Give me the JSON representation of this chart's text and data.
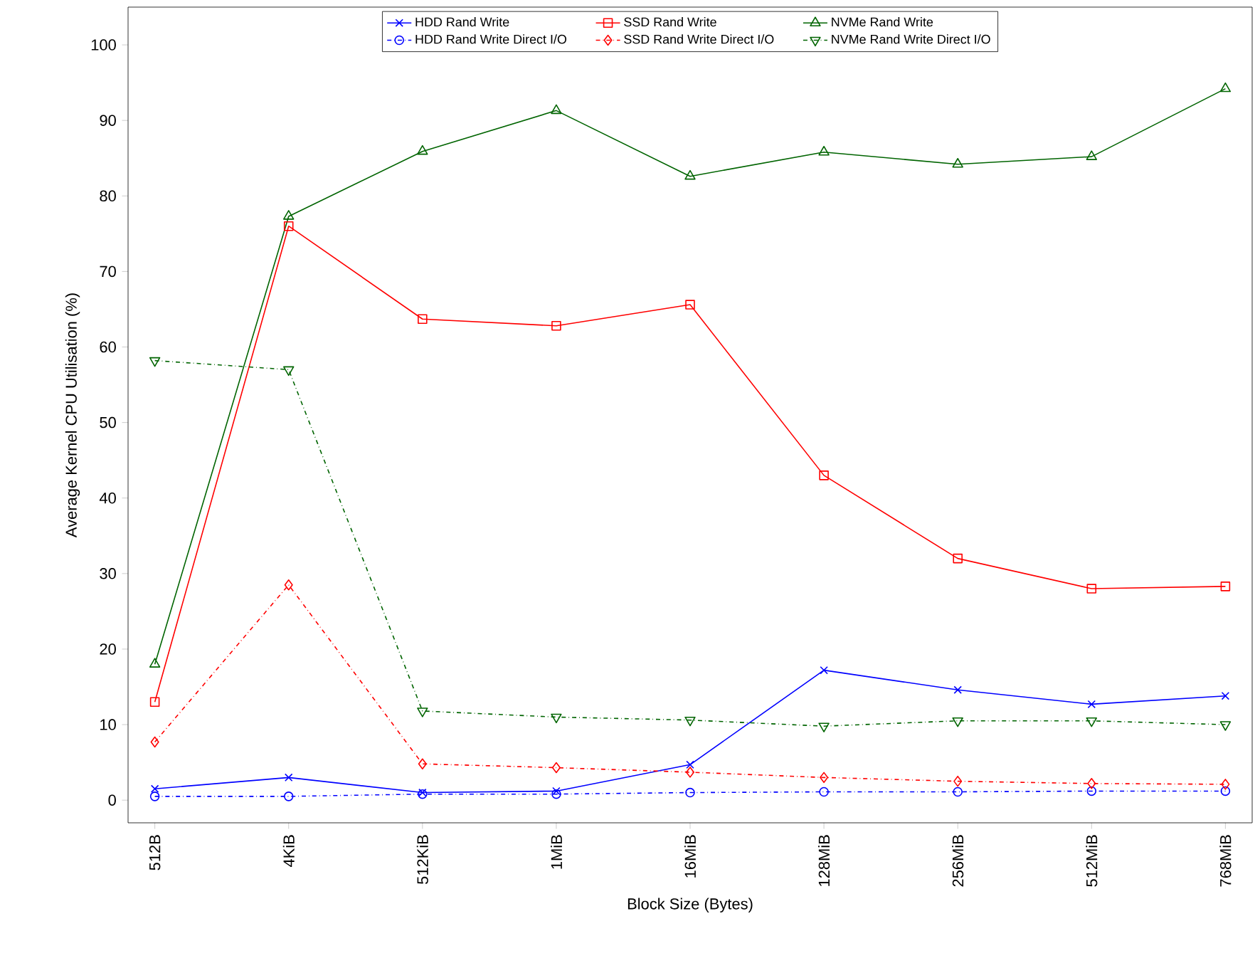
{
  "chart_data": {
    "type": "line",
    "xlabel": "Block Size (Bytes)",
    "ylabel": "Average Kernel CPU Utilisation (%)",
    "categories": [
      "512B",
      "4KiB",
      "512KiB",
      "1MiB",
      "16MiB",
      "128MiB",
      "256MiB",
      "512MiB",
      "768MiB"
    ],
    "ylim": [
      -3,
      105
    ],
    "yticks": [
      0,
      10,
      20,
      30,
      40,
      50,
      60,
      70,
      80,
      90,
      100
    ],
    "grid": false,
    "legend": "top",
    "series": [
      {
        "name": "HDD Rand Write",
        "color": "#0000ff",
        "marker": "cross",
        "line_style": "solid",
        "values": [
          1.5,
          3,
          1,
          1.2,
          4.7,
          17.2,
          14.6,
          12.7,
          13.8
        ]
      },
      {
        "name": "SSD Rand Write",
        "color": "#ff0000",
        "marker": "square",
        "line_style": "solid",
        "values": [
          13,
          76,
          63.7,
          62.8,
          65.6,
          43,
          32,
          28,
          28.3
        ]
      },
      {
        "name": "NVMe Rand Write",
        "color": "#006400",
        "marker": "triangle",
        "line_style": "solid",
        "values": [
          18,
          77.3,
          85.9,
          91.3,
          82.6,
          85.8,
          84.2,
          85.2,
          94.2
        ]
      },
      {
        "name": "HDD Rand Write Direct I/O",
        "color": "#0000ff",
        "marker": "circle",
        "line_style": "dashdot",
        "values": [
          0.5,
          0.5,
          0.8,
          0.8,
          1.0,
          1.1,
          1.1,
          1.2,
          1.2
        ]
      },
      {
        "name": "SSD Rand Write Direct I/O",
        "color": "#ff0000",
        "marker": "diamond",
        "line_style": "dashdot",
        "values": [
          7.7,
          28.5,
          4.8,
          4.3,
          3.7,
          3.0,
          2.5,
          2.2,
          2.1
        ]
      },
      {
        "name": "NVMe Rand Write Direct I/O",
        "color": "#006400",
        "marker": "triangle-down",
        "line_style": "dashdot",
        "values": [
          58.2,
          57,
          11.8,
          11,
          10.6,
          9.8,
          10.5,
          10.5,
          10
        ]
      }
    ]
  }
}
